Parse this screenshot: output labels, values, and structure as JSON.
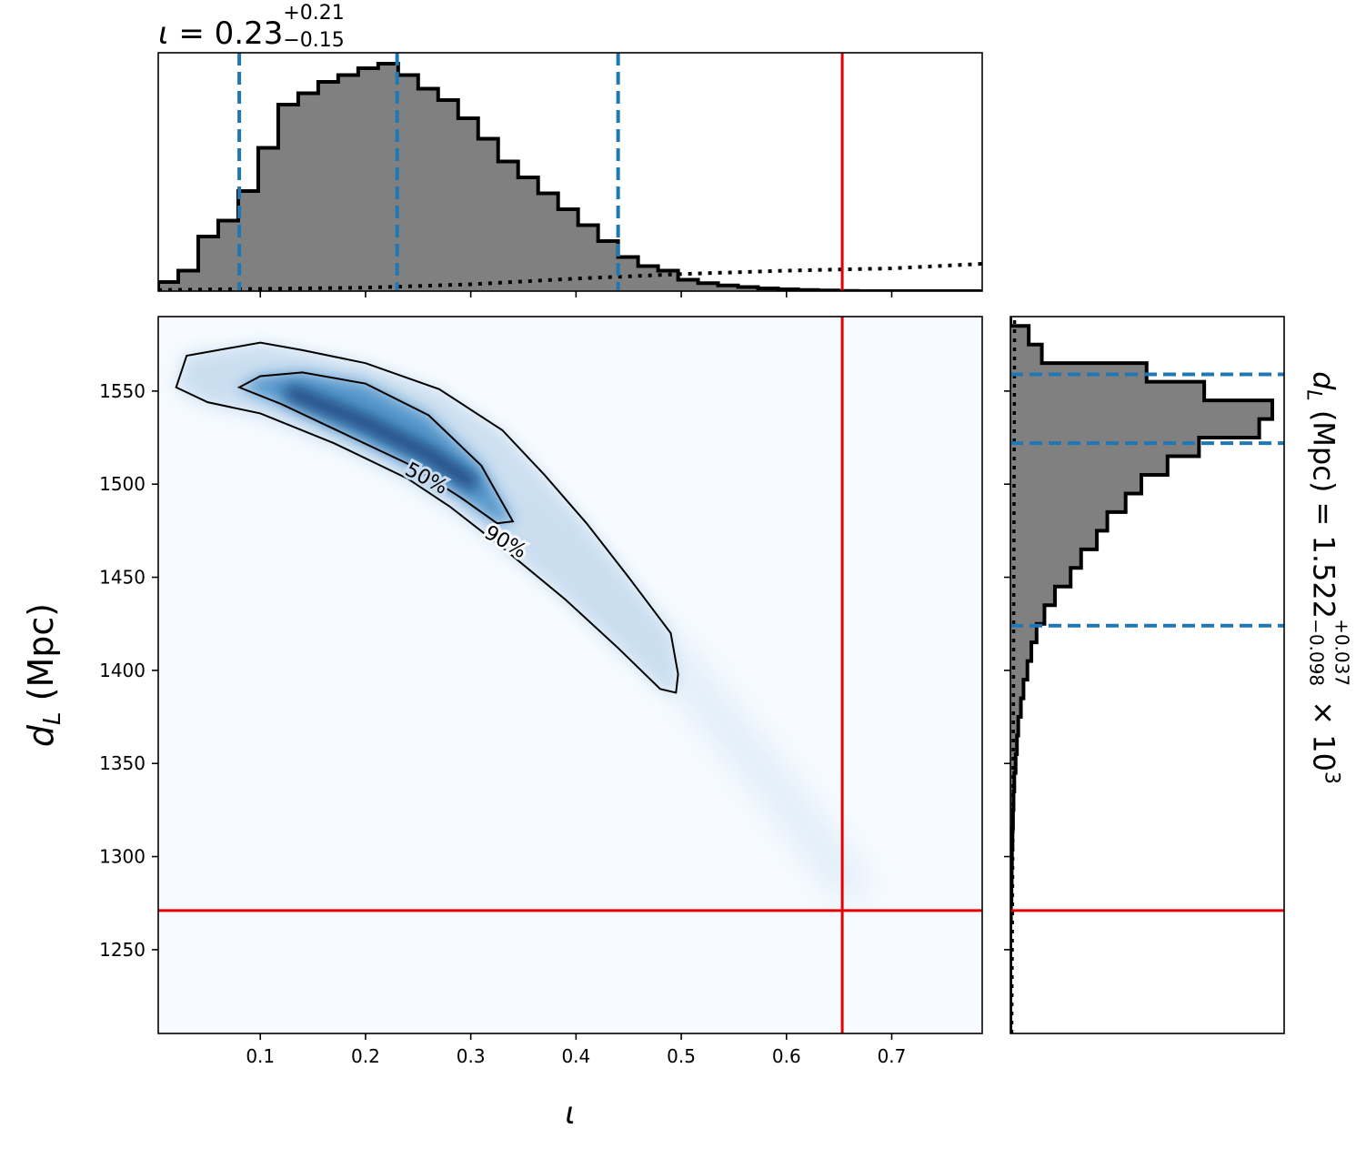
{
  "chart_data": [
    {
      "panel": "top-marginal",
      "type": "histogram",
      "title_symbol": "ι",
      "title_eq": "=",
      "title_value": "0.23",
      "title_upper": "+0.21",
      "title_lower": "−0.15",
      "xlim": [
        0.003,
        0.786
      ],
      "bin_edges": [
        0.003,
        0.022,
        0.041,
        0.06,
        0.079,
        0.098,
        0.117,
        0.136,
        0.155,
        0.174,
        0.193,
        0.212,
        0.231,
        0.25,
        0.269,
        0.288,
        0.307,
        0.326,
        0.345,
        0.364,
        0.383,
        0.402,
        0.421,
        0.44,
        0.459,
        0.478,
        0.497,
        0.516,
        0.535,
        0.554,
        0.573,
        0.592,
        0.611,
        0.63,
        0.649,
        0.668,
        0.687,
        0.706,
        0.725,
        0.744,
        0.763,
        0.786
      ],
      "counts": [
        0.04,
        0.09,
        0.24,
        0.31,
        0.44,
        0.63,
        0.82,
        0.87,
        0.92,
        0.95,
        0.98,
        1.0,
        0.95,
        0.89,
        0.84,
        0.76,
        0.67,
        0.57,
        0.5,
        0.43,
        0.36,
        0.29,
        0.22,
        0.15,
        0.11,
        0.09,
        0.05,
        0.035,
        0.025,
        0.018,
        0.012,
        0.008,
        0.005,
        0.003,
        0.001,
        0.0,
        0.0,
        0.0,
        0.0,
        0.0,
        0.0
      ],
      "prior_line": [
        [
          0.003,
          0.005
        ],
        [
          0.1,
          0.01
        ],
        [
          0.2,
          0.015
        ],
        [
          0.3,
          0.03
        ],
        [
          0.4,
          0.055
        ],
        [
          0.5,
          0.075
        ],
        [
          0.6,
          0.09
        ],
        [
          0.7,
          0.1
        ],
        [
          0.786,
          0.12
        ]
      ],
      "quantiles": [
        0.08,
        0.23,
        0.44
      ],
      "truth": 0.653,
      "colors": {
        "hist": "#808080",
        "edge": "#000000",
        "quantile": "#1f77b4",
        "truth": "#e60000"
      }
    },
    {
      "panel": "joint",
      "type": "heatmap",
      "xlabel": "ι",
      "ylabel_symbol": "d",
      "ylabel_sub": "L",
      "ylabel_unit": "(Mpc)",
      "xlim": [
        0.003,
        0.786
      ],
      "ylim": [
        1205,
        1590
      ],
      "x_ticks": [
        "0.1",
        "0.2",
        "0.3",
        "0.4",
        "0.5",
        "0.6",
        "0.7"
      ],
      "x_tick_values": [
        0.1,
        0.2,
        0.3,
        0.4,
        0.5,
        0.6,
        0.7
      ],
      "y_ticks": [
        "1250",
        "1300",
        "1350",
        "1400",
        "1450",
        "1500",
        "1550"
      ],
      "y_tick_values": [
        1250,
        1300,
        1350,
        1400,
        1450,
        1500,
        1550
      ],
      "truth_x": 0.653,
      "truth_y": 1271,
      "contour_labels": [
        "50%",
        "90%"
      ],
      "contour_90": [
        [
          0.02,
          1552
        ],
        [
          0.03,
          1569
        ],
        [
          0.07,
          1573
        ],
        [
          0.1,
          1576
        ],
        [
          0.14,
          1572
        ],
        [
          0.2,
          1565
        ],
        [
          0.27,
          1551
        ],
        [
          0.33,
          1529
        ],
        [
          0.37,
          1505
        ],
        [
          0.41,
          1479
        ],
        [
          0.45,
          1450
        ],
        [
          0.49,
          1420
        ],
        [
          0.497,
          1398
        ],
        [
          0.495,
          1388
        ],
        [
          0.48,
          1390
        ],
        [
          0.44,
          1412
        ],
        [
          0.39,
          1438
        ],
        [
          0.33,
          1466
        ],
        [
          0.28,
          1488
        ],
        [
          0.24,
          1503
        ],
        [
          0.17,
          1522
        ],
        [
          0.1,
          1538
        ],
        [
          0.05,
          1544
        ],
        [
          0.02,
          1552
        ]
      ],
      "contour_50": [
        [
          0.08,
          1552
        ],
        [
          0.1,
          1558
        ],
        [
          0.14,
          1560
        ],
        [
          0.2,
          1554
        ],
        [
          0.26,
          1537
        ],
        [
          0.31,
          1510
        ],
        [
          0.34,
          1480
        ],
        [
          0.325,
          1479
        ],
        [
          0.29,
          1493
        ],
        [
          0.24,
          1511
        ],
        [
          0.18,
          1527
        ],
        [
          0.12,
          1543
        ],
        [
          0.08,
          1552
        ]
      ],
      "density_ridge": [
        [
          0.04,
          1557
        ],
        [
          0.1,
          1550
        ],
        [
          0.2,
          1530
        ],
        [
          0.3,
          1497
        ],
        [
          0.4,
          1455
        ],
        [
          0.5,
          1400
        ],
        [
          0.6,
          1330
        ],
        [
          0.66,
          1285
        ]
      ]
    },
    {
      "panel": "right-marginal",
      "type": "histogram",
      "orientation": "horizontal",
      "label_symbol": "d",
      "label_sub": "L",
      "label_unit": "(Mpc)",
      "label_eq": "=",
      "label_value": "1.522",
      "label_upper": "+0.037",
      "label_lower": "−0.098",
      "label_times": "× 10",
      "label_exp": "3",
      "ylim": [
        1205,
        1590
      ],
      "bin_edges": [
        1205,
        1215,
        1225,
        1235,
        1245,
        1255,
        1265,
        1275,
        1285,
        1295,
        1305,
        1315,
        1325,
        1335,
        1345,
        1355,
        1365,
        1375,
        1385,
        1395,
        1405,
        1415,
        1425,
        1435,
        1445,
        1455,
        1465,
        1475,
        1485,
        1495,
        1505,
        1515,
        1525,
        1535,
        1545,
        1555,
        1565,
        1575,
        1585,
        1590
      ],
      "counts": [
        0.0,
        0.0,
        0.0,
        0.0,
        0.0,
        0.0,
        0.002,
        0.004,
        0.005,
        0.006,
        0.008,
        0.01,
        0.012,
        0.015,
        0.02,
        0.025,
        0.03,
        0.04,
        0.05,
        0.065,
        0.08,
        0.1,
        0.13,
        0.17,
        0.23,
        0.27,
        0.33,
        0.37,
        0.44,
        0.5,
        0.6,
        0.72,
        0.95,
        1.0,
        0.74,
        0.52,
        0.12,
        0.07,
        0.0
      ],
      "prior_line": [
        [
          0.005,
          1205
        ],
        [
          0.009,
          1300
        ],
        [
          0.012,
          1400
        ],
        [
          0.014,
          1500
        ],
        [
          0.016,
          1590
        ]
      ],
      "quantiles": [
        1424,
        1522,
        1559
      ],
      "truth": 1271,
      "colors": {
        "hist": "#808080",
        "edge": "#000000",
        "quantile": "#1f77b4",
        "truth": "#e60000"
      }
    }
  ]
}
